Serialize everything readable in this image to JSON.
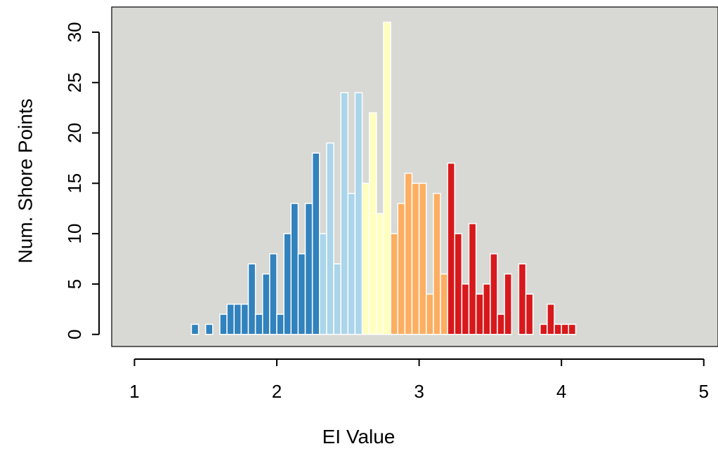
{
  "chart_data": {
    "type": "bar",
    "title": "",
    "xlabel": "EI Value",
    "ylabel": "Num. Shore Points",
    "xlim": [
      0.84,
      5.1
    ],
    "ylim": [
      -1.2,
      32.5
    ],
    "xticks": [
      1,
      2,
      3,
      4,
      5
    ],
    "yticks": [
      0,
      5,
      10,
      15,
      20,
      25,
      30
    ],
    "bin_width": 0.05,
    "grid": false,
    "legend": "none",
    "colors": {
      "panel_background": "#d8d8d4",
      "bar_border": "#ffffff",
      "axis": "#000000",
      "bins_dark_blue": "#3182bd",
      "bins_light_blue": "#abd5ea",
      "bins_yellow": "#ffffc0",
      "bins_orange": "#fdae61",
      "bins_red": "#d7191c"
    },
    "bars": [
      {
        "x0": 1.4,
        "value": 1,
        "color": "#3182bd"
      },
      {
        "x0": 1.45,
        "value": 0,
        "color": "#3182bd"
      },
      {
        "x0": 1.5,
        "value": 1,
        "color": "#3182bd"
      },
      {
        "x0": 1.55,
        "value": 0,
        "color": "#3182bd"
      },
      {
        "x0": 1.6,
        "value": 2,
        "color": "#3182bd"
      },
      {
        "x0": 1.65,
        "value": 3,
        "color": "#3182bd"
      },
      {
        "x0": 1.7,
        "value": 3,
        "color": "#3182bd"
      },
      {
        "x0": 1.75,
        "value": 3,
        "color": "#3182bd"
      },
      {
        "x0": 1.8,
        "value": 7,
        "color": "#3182bd"
      },
      {
        "x0": 1.85,
        "value": 2,
        "color": "#3182bd"
      },
      {
        "x0": 1.9,
        "value": 6,
        "color": "#3182bd"
      },
      {
        "x0": 1.95,
        "value": 8,
        "color": "#3182bd"
      },
      {
        "x0": 2.0,
        "value": 2,
        "color": "#3182bd"
      },
      {
        "x0": 2.05,
        "value": 10,
        "color": "#3182bd"
      },
      {
        "x0": 2.1,
        "value": 13,
        "color": "#3182bd"
      },
      {
        "x0": 2.15,
        "value": 8,
        "color": "#3182bd"
      },
      {
        "x0": 2.2,
        "value": 13,
        "color": "#3182bd"
      },
      {
        "x0": 2.25,
        "value": 18,
        "color": "#3182bd"
      },
      {
        "x0": 2.3,
        "value": 10,
        "color": "#abd5ea"
      },
      {
        "x0": 2.35,
        "value": 19,
        "color": "#abd5ea"
      },
      {
        "x0": 2.4,
        "value": 7,
        "color": "#abd5ea"
      },
      {
        "x0": 2.45,
        "value": 24,
        "color": "#abd5ea"
      },
      {
        "x0": 2.5,
        "value": 14,
        "color": "#abd5ea"
      },
      {
        "x0": 2.55,
        "value": 24,
        "color": "#abd5ea"
      },
      {
        "x0": 2.6,
        "value": 15,
        "color": "#ffffc0"
      },
      {
        "x0": 2.65,
        "value": 22,
        "color": "#ffffc0"
      },
      {
        "x0": 2.7,
        "value": 12,
        "color": "#ffffc0"
      },
      {
        "x0": 2.75,
        "value": 31,
        "color": "#ffffc0"
      },
      {
        "x0": 2.8,
        "value": 10,
        "color": "#fdae61"
      },
      {
        "x0": 2.85,
        "value": 13,
        "color": "#fdae61"
      },
      {
        "x0": 2.9,
        "value": 16,
        "color": "#fdae61"
      },
      {
        "x0": 2.95,
        "value": 15,
        "color": "#fdae61"
      },
      {
        "x0": 3.0,
        "value": 15,
        "color": "#fdae61"
      },
      {
        "x0": 3.05,
        "value": 4,
        "color": "#fdae61"
      },
      {
        "x0": 3.1,
        "value": 14,
        "color": "#fdae61"
      },
      {
        "x0": 3.15,
        "value": 6,
        "color": "#fdae61"
      },
      {
        "x0": 3.2,
        "value": 17,
        "color": "#d7191c"
      },
      {
        "x0": 3.25,
        "value": 10,
        "color": "#d7191c"
      },
      {
        "x0": 3.3,
        "value": 5,
        "color": "#d7191c"
      },
      {
        "x0": 3.35,
        "value": 11,
        "color": "#d7191c"
      },
      {
        "x0": 3.4,
        "value": 4,
        "color": "#d7191c"
      },
      {
        "x0": 3.45,
        "value": 5,
        "color": "#d7191c"
      },
      {
        "x0": 3.5,
        "value": 8,
        "color": "#d7191c"
      },
      {
        "x0": 3.55,
        "value": 2,
        "color": "#d7191c"
      },
      {
        "x0": 3.6,
        "value": 6,
        "color": "#d7191c"
      },
      {
        "x0": 3.65,
        "value": 0,
        "color": "#d7191c"
      },
      {
        "x0": 3.7,
        "value": 7,
        "color": "#d7191c"
      },
      {
        "x0": 3.75,
        "value": 4,
        "color": "#d7191c"
      },
      {
        "x0": 3.8,
        "value": 0,
        "color": "#d7191c"
      },
      {
        "x0": 3.85,
        "value": 1,
        "color": "#d7191c"
      },
      {
        "x0": 3.9,
        "value": 3,
        "color": "#d7191c"
      },
      {
        "x0": 3.95,
        "value": 1,
        "color": "#d7191c"
      },
      {
        "x0": 4.0,
        "value": 1,
        "color": "#d7191c"
      },
      {
        "x0": 4.05,
        "value": 1,
        "color": "#d7191c"
      }
    ]
  }
}
